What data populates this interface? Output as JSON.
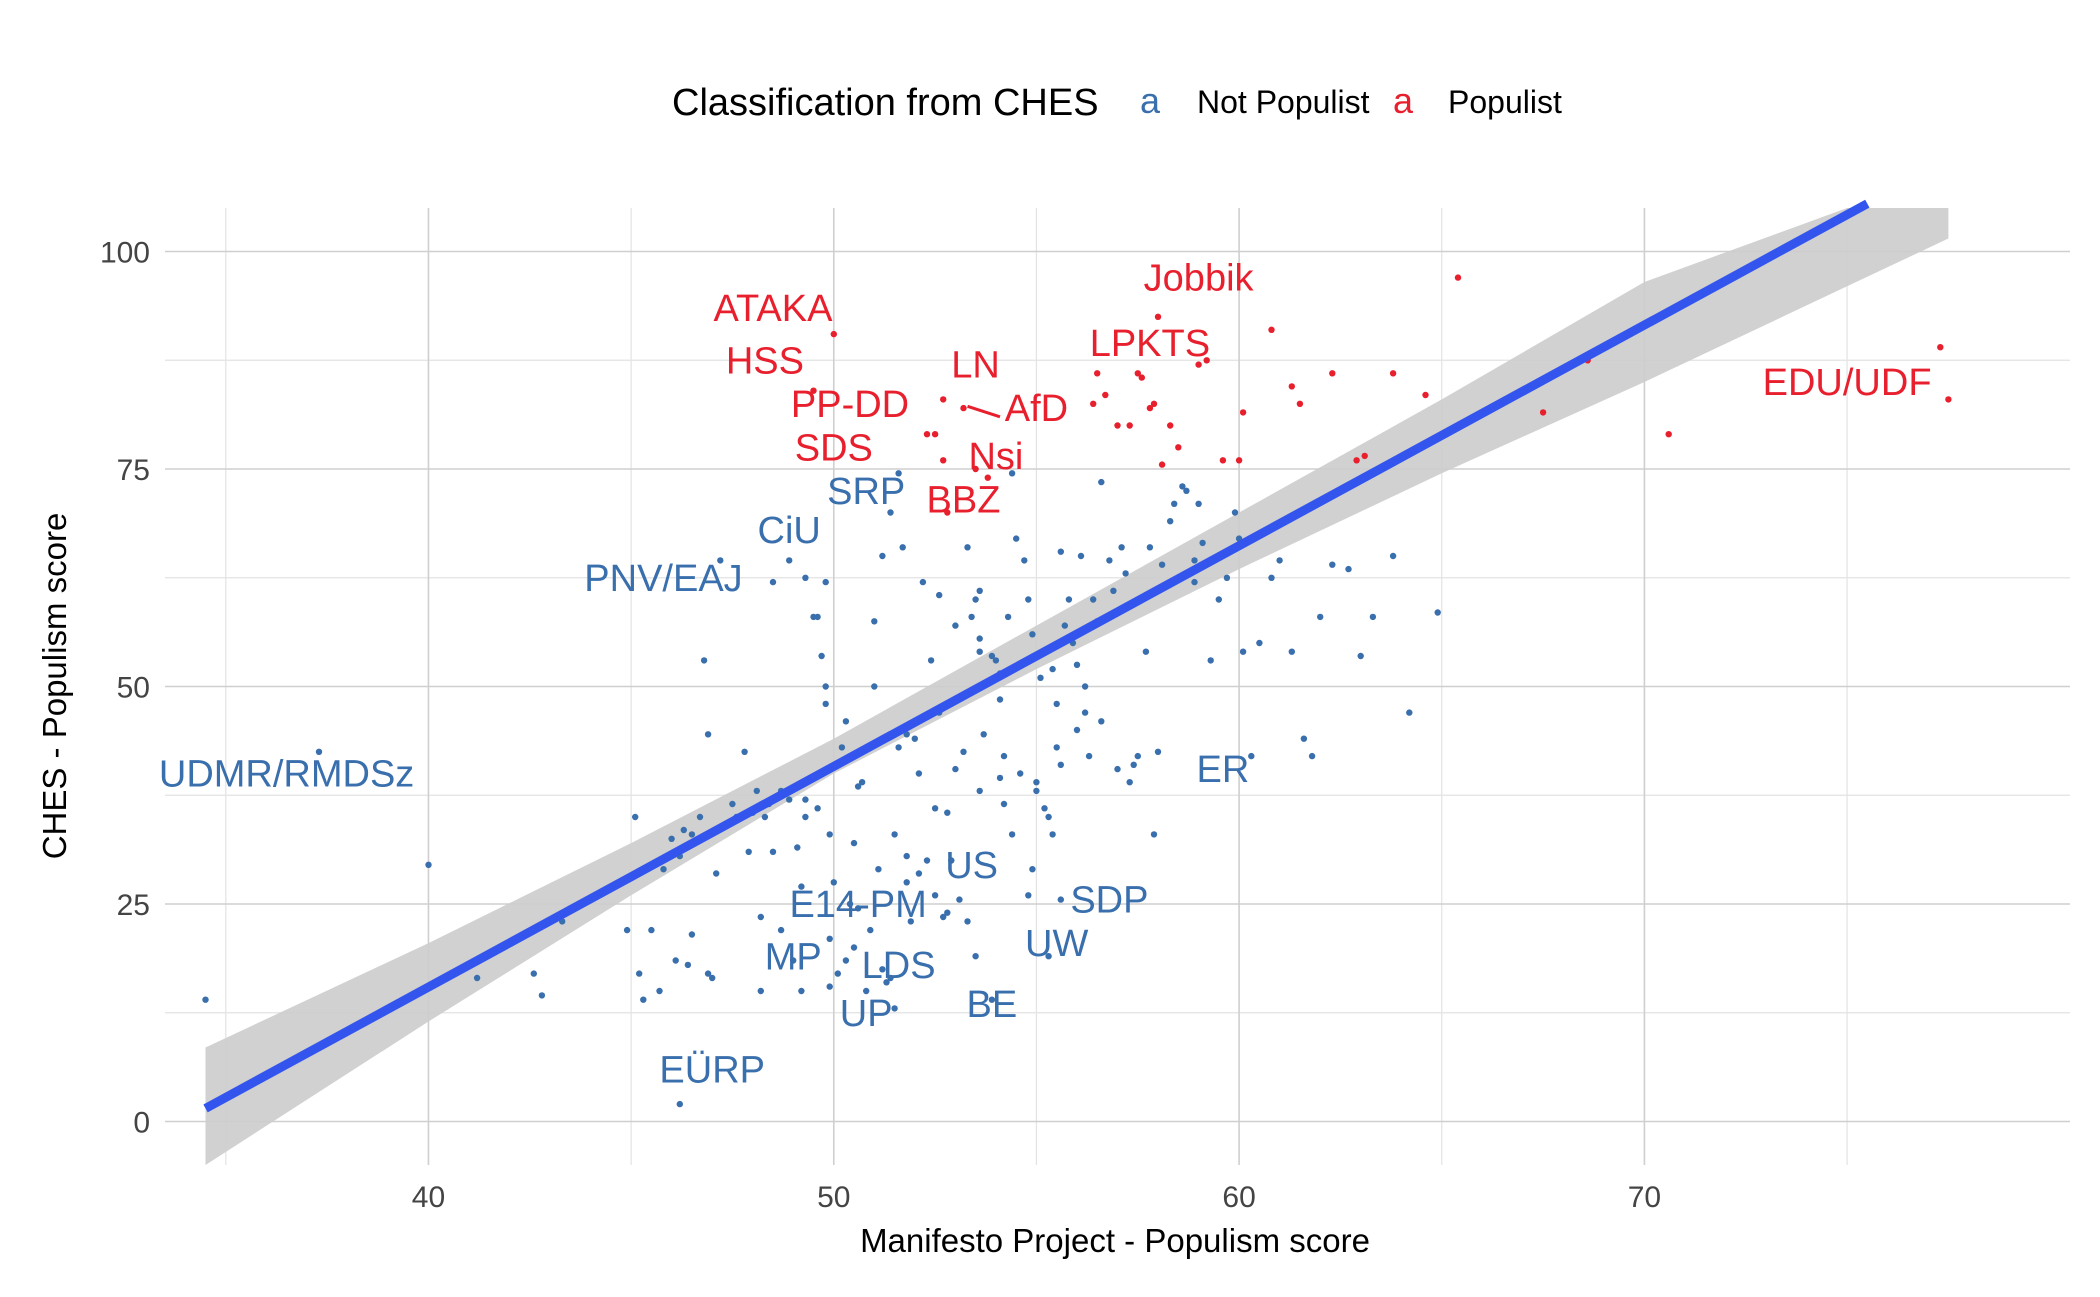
{
  "chart_data": {
    "type": "scatter",
    "title": "",
    "xlabel": "Manifesto Project - Populism score",
    "ylabel": "CHES - Populism score",
    "xlim": [
      33.5,
      80.5
    ],
    "ylim": [
      -5,
      105
    ],
    "x_ticks": [
      40,
      50,
      60,
      70
    ],
    "y_ticks": [
      0,
      25,
      50,
      75,
      100
    ],
    "grid": true,
    "legend": {
      "title": "Classification from CHES",
      "position": "top",
      "key_glyph": "a",
      "entries": [
        {
          "name": "Not Populist",
          "color": "#3a6fad"
        },
        {
          "name": "Populist",
          "color": "#e8202e"
        }
      ]
    },
    "regression": {
      "color": "#3355ee",
      "band_color": "#cccccc",
      "x_start": 34.5,
      "x_end": 75.5,
      "y_start": 1.5,
      "y_end": 105.5,
      "band_points": [
        {
          "x": 34.5,
          "lower": -5.0,
          "upper": 8.5
        },
        {
          "x": 40,
          "lower": 11.5,
          "upper": 20.5
        },
        {
          "x": 45,
          "lower": 26.0,
          "upper": 32.0
        },
        {
          "x": 50,
          "lower": 40.0,
          "upper": 44.0
        },
        {
          "x": 55,
          "lower": 52.0,
          "upper": 57.0
        },
        {
          "x": 60,
          "lower": 63.5,
          "upper": 70.0
        },
        {
          "x": 65,
          "lower": 74.5,
          "upper": 83.0
        },
        {
          "x": 70,
          "lower": 85.0,
          "upper": 96.5
        },
        {
          "x": 75,
          "lower": 96.0,
          "upper": 105.0
        },
        {
          "x": 77.5,
          "lower": 101.5,
          "upper": 105.0
        }
      ]
    },
    "series": [
      {
        "name": "Populist",
        "color": "#e8202e",
        "points": [
          [
            50,
            90.5
          ],
          [
            49.5,
            84
          ],
          [
            52.3,
            79
          ],
          [
            52.5,
            79
          ],
          [
            52.7,
            83
          ],
          [
            53.2,
            82
          ],
          [
            52.7,
            76
          ],
          [
            53.5,
            75
          ],
          [
            53.8,
            74
          ],
          [
            52.8,
            70
          ],
          [
            56.5,
            86
          ],
          [
            56.7,
            83.5
          ],
          [
            56.4,
            82.5
          ],
          [
            57,
            80
          ],
          [
            57.3,
            80
          ],
          [
            57.5,
            86
          ],
          [
            57.6,
            85.5
          ],
          [
            57.8,
            82
          ],
          [
            57.9,
            82.5
          ],
          [
            58,
            92.5
          ],
          [
            58.3,
            80
          ],
          [
            58.1,
            75.5
          ],
          [
            58.5,
            77.5
          ],
          [
            59,
            87
          ],
          [
            59.2,
            87.5
          ],
          [
            59.6,
            76
          ],
          [
            60,
            76
          ],
          [
            60.1,
            81.5
          ],
          [
            60.8,
            91
          ],
          [
            61.3,
            84.5
          ],
          [
            61.5,
            82.5
          ],
          [
            62.3,
            86
          ],
          [
            62.9,
            76
          ],
          [
            63.1,
            76.5
          ],
          [
            63.8,
            86
          ],
          [
            64.6,
            83.5
          ],
          [
            65.4,
            97
          ],
          [
            67.5,
            81.5
          ],
          [
            68.6,
            87.5
          ],
          [
            70.6,
            79
          ],
          [
            77.3,
            89
          ],
          [
            77.5,
            83
          ]
        ],
        "labels": [
          {
            "text": "ATAKA",
            "x": 48.5,
            "y": 92
          },
          {
            "text": "HSS",
            "x": 48.3,
            "y": 86
          },
          {
            "text": "PP-DD",
            "x": 50.4,
            "y": 81
          },
          {
            "text": "LN",
            "x": 53.5,
            "y": 85.5
          },
          {
            "text": "AfD",
            "x": 55.0,
            "y": 80.5
          },
          {
            "text": "SDS",
            "x": 50.0,
            "y": 76
          },
          {
            "text": "Nsi",
            "x": 54.0,
            "y": 75
          },
          {
            "text": "BBZ",
            "x": 53.2,
            "y": 70
          },
          {
            "text": "Jobbik",
            "x": 59.0,
            "y": 95.5
          },
          {
            "text": "LPKTS",
            "x": 57.8,
            "y": 88
          },
          {
            "text": "EDU/UDF",
            "x": 75.0,
            "y": 83.5
          }
        ]
      },
      {
        "name": "Not Populist",
        "color": "#3a6fad",
        "points": [
          [
            34.5,
            14
          ],
          [
            37.3,
            42.5
          ],
          [
            40,
            29.5
          ],
          [
            41.2,
            16.5
          ],
          [
            42.6,
            17
          ],
          [
            42.8,
            14.5
          ],
          [
            43.3,
            23
          ],
          [
            44.9,
            22
          ],
          [
            45.1,
            35
          ],
          [
            45.2,
            17
          ],
          [
            45.3,
            14
          ],
          [
            45.5,
            22
          ],
          [
            45.7,
            15
          ],
          [
            45.8,
            29
          ],
          [
            46.0,
            32.5
          ],
          [
            46.1,
            18.5
          ],
          [
            46.2,
            30.5
          ],
          [
            46.3,
            33.5
          ],
          [
            46.4,
            18
          ],
          [
            46.5,
            21.5
          ],
          [
            46.8,
            53
          ],
          [
            46.9,
            44.5
          ],
          [
            46.9,
            17
          ],
          [
            47.0,
            16.5
          ],
          [
            47.1,
            28.5
          ],
          [
            47.2,
            64.5
          ],
          [
            47.8,
            42.5
          ],
          [
            48.2,
            23.5
          ],
          [
            48.2,
            15
          ],
          [
            48.3,
            35
          ],
          [
            48.4,
            36.5
          ],
          [
            48.5,
            31
          ],
          [
            48.5,
            62
          ],
          [
            48.7,
            38
          ],
          [
            48.9,
            64.5
          ],
          [
            48.9,
            37
          ],
          [
            49.1,
            31.5
          ],
          [
            49.2,
            27
          ],
          [
            49.3,
            62.5
          ],
          [
            49.3,
            35
          ],
          [
            49.5,
            58
          ],
          [
            49.6,
            36
          ],
          [
            49.6,
            58
          ],
          [
            49.7,
            53.5
          ],
          [
            49.8,
            48
          ],
          [
            49.8,
            62
          ],
          [
            49.8,
            50
          ],
          [
            49.9,
            33
          ],
          [
            49.9,
            21
          ],
          [
            49.9,
            15.5
          ],
          [
            50.0,
            27.5
          ],
          [
            50.1,
            17
          ],
          [
            50.2,
            43
          ],
          [
            50.3,
            18.5
          ],
          [
            50.4,
            25
          ],
          [
            50.5,
            20
          ],
          [
            50.5,
            32
          ],
          [
            50.6,
            38.5
          ],
          [
            50.7,
            39
          ],
          [
            50.8,
            15
          ],
          [
            50.9,
            22
          ],
          [
            51.0,
            50
          ],
          [
            51.1,
            29
          ],
          [
            51.2,
            17.5
          ],
          [
            51.3,
            16
          ],
          [
            51.4,
            16.5
          ],
          [
            51.5,
            13
          ],
          [
            51.6,
            43
          ],
          [
            51.7,
            66
          ],
          [
            51.8,
            27.5
          ],
          [
            51.8,
            30.5
          ],
          [
            51.9,
            23
          ],
          [
            52.0,
            44
          ],
          [
            52.1,
            28.5
          ],
          [
            52.3,
            30
          ],
          [
            52.5,
            26
          ],
          [
            52.6,
            47
          ],
          [
            52.7,
            23.5
          ],
          [
            52.8,
            24
          ],
          [
            52.8,
            35.5
          ],
          [
            52.9,
            30
          ],
          [
            53.1,
            25.5
          ],
          [
            53.2,
            42.5
          ],
          [
            53.3,
            23
          ],
          [
            53.4,
            58
          ],
          [
            53.5,
            60
          ],
          [
            53.6,
            55.5
          ],
          [
            53.6,
            54
          ],
          [
            53.7,
            44.5
          ],
          [
            53.9,
            53.5
          ],
          [
            54.0,
            53
          ],
          [
            54.1,
            48.5
          ],
          [
            54.1,
            39.5
          ],
          [
            54.2,
            36.5
          ],
          [
            54.4,
            74.5
          ],
          [
            54.5,
            67
          ],
          [
            54.7,
            64.5
          ],
          [
            54.8,
            60
          ],
          [
            54.9,
            56
          ],
          [
            55.0,
            38
          ],
          [
            55.2,
            36
          ],
          [
            55.3,
            35
          ],
          [
            55.4,
            33
          ],
          [
            55.5,
            48
          ],
          [
            55.5,
            43
          ],
          [
            55.6,
            65.5
          ],
          [
            55.8,
            60
          ],
          [
            55.9,
            55
          ],
          [
            56.0,
            45
          ],
          [
            56.1,
            65
          ],
          [
            56.2,
            47
          ],
          [
            56.4,
            60
          ],
          [
            56.5,
            57.5
          ],
          [
            56.6,
            46
          ],
          [
            56.8,
            64.5
          ],
          [
            56.9,
            61
          ],
          [
            57.0,
            40.5
          ],
          [
            57.2,
            63
          ],
          [
            57.3,
            39
          ],
          [
            57.5,
            42
          ],
          [
            57.7,
            54
          ],
          [
            57.8,
            66
          ],
          [
            57.9,
            33
          ],
          [
            58.1,
            64
          ],
          [
            58.3,
            69
          ],
          [
            58.4,
            71
          ],
          [
            58.6,
            73
          ],
          [
            58.7,
            72.5
          ],
          [
            58.9,
            62
          ],
          [
            58.9,
            64.5
          ],
          [
            59.0,
            71
          ],
          [
            59.1,
            66.5
          ],
          [
            59.3,
            53
          ],
          [
            59.5,
            60
          ],
          [
            59.7,
            62.5
          ],
          [
            59.9,
            70
          ],
          [
            60.0,
            67
          ],
          [
            60.1,
            54
          ],
          [
            60.3,
            42
          ],
          [
            60.5,
            55
          ],
          [
            60.8,
            62.5
          ],
          [
            61.0,
            64.5
          ],
          [
            61.3,
            54
          ],
          [
            61.6,
            44
          ],
          [
            61.8,
            42
          ],
          [
            62.0,
            58
          ],
          [
            62.3,
            64
          ],
          [
            62.7,
            63.5
          ],
          [
            63.0,
            53.5
          ],
          [
            63.3,
            58
          ],
          [
            63.8,
            65
          ],
          [
            64.2,
            47
          ],
          [
            64.9,
            58.5
          ],
          [
            46.2,
            2
          ],
          [
            48.7,
            22
          ],
          [
            49.0,
            18.5
          ],
          [
            49.2,
            15
          ],
          [
            50.6,
            24.5
          ],
          [
            51.5,
            33
          ],
          [
            53.5,
            19
          ],
          [
            53.9,
            14
          ],
          [
            54.4,
            33
          ],
          [
            54.8,
            26
          ],
          [
            54.9,
            29
          ],
          [
            55.3,
            19
          ],
          [
            55.6,
            25.5
          ],
          [
            51.0,
            57.5
          ],
          [
            51.2,
            65
          ],
          [
            51.4,
            70
          ],
          [
            51.6,
            74.5
          ],
          [
            52.2,
            62
          ],
          [
            52.4,
            53
          ],
          [
            52.6,
            60.5
          ],
          [
            53.0,
            57
          ],
          [
            53.3,
            66
          ],
          [
            53.6,
            61
          ],
          [
            54.1,
            51.5
          ],
          [
            54.3,
            58
          ],
          [
            55.1,
            51
          ],
          [
            55.4,
            52
          ],
          [
            55.7,
            57
          ],
          [
            56.0,
            52.5
          ],
          [
            56.2,
            50
          ],
          [
            56.6,
            73.5
          ],
          [
            57.1,
            66
          ],
          [
            49.3,
            37
          ],
          [
            50.3,
            46
          ],
          [
            51.8,
            44.5
          ],
          [
            52.1,
            40
          ],
          [
            52.5,
            36
          ],
          [
            53.0,
            40.5
          ],
          [
            53.6,
            38
          ],
          [
            54.2,
            42
          ],
          [
            54.6,
            40
          ],
          [
            55.0,
            39
          ],
          [
            55.6,
            41
          ],
          [
            56.3,
            42
          ],
          [
            57.4,
            41
          ],
          [
            58.0,
            42.5
          ],
          [
            47.5,
            36.5
          ],
          [
            47.6,
            35
          ],
          [
            48.0,
            35.5
          ],
          [
            47.9,
            31
          ],
          [
            46.7,
            35
          ],
          [
            46.5,
            33
          ],
          [
            48.1,
            38
          ]
        ],
        "labels": [
          {
            "text": "SRP",
            "x": 50.8,
            "y": 71
          },
          {
            "text": "CiU",
            "x": 48.9,
            "y": 66.5
          },
          {
            "text": "PNV/EAJ",
            "x": 45.8,
            "y": 61
          },
          {
            "text": "UDMR/RMDSz",
            "x": 36.5,
            "y": 38.5
          },
          {
            "text": "ER",
            "x": 59.6,
            "y": 39
          },
          {
            "text": "US",
            "x": 53.4,
            "y": 28
          },
          {
            "text": "SDP",
            "x": 56.8,
            "y": 24
          },
          {
            "text": "E14-PM",
            "x": 50.6,
            "y": 23.5
          },
          {
            "text": "UW",
            "x": 55.5,
            "y": 19
          },
          {
            "text": "MP",
            "x": 49.0,
            "y": 17.5
          },
          {
            "text": "LDS",
            "x": 51.6,
            "y": 16.5
          },
          {
            "text": "BE",
            "x": 53.9,
            "y": 12
          },
          {
            "text": "UP",
            "x": 50.8,
            "y": 11
          },
          {
            "text": "EÜRP",
            "x": 47.0,
            "y": 4.5
          }
        ]
      }
    ]
  }
}
